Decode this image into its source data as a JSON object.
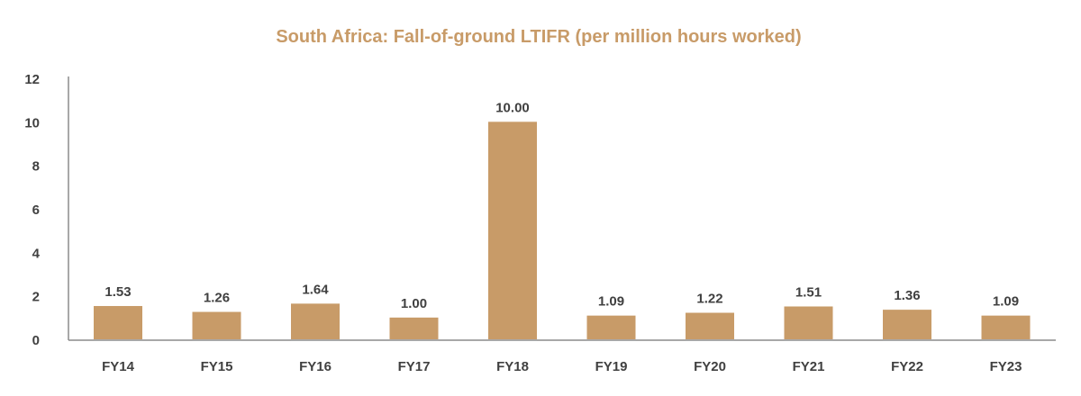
{
  "chart_data": {
    "type": "bar",
    "title": "South Africa: Fall-of-ground LTIFR (per million hours worked)",
    "xlabel": "",
    "ylabel": "",
    "categories": [
      "FY14",
      "FY15",
      "FY16",
      "FY17",
      "FY18",
      "FY19",
      "FY20",
      "FY21",
      "FY22",
      "FY23"
    ],
    "values": [
      1.53,
      1.26,
      1.64,
      1.0,
      10.0,
      1.09,
      1.22,
      1.51,
      1.36,
      1.09
    ],
    "data_labels": [
      "1.53",
      "1.26",
      "1.64",
      "1.00",
      "10.00",
      "1.09",
      "1.22",
      "1.51",
      "1.36",
      "1.09"
    ],
    "ylim": [
      0,
      12
    ],
    "yticks": [
      "0",
      "2",
      "4",
      "6",
      "8",
      "10",
      "12"
    ],
    "grid": false,
    "legend": "none",
    "colors": {
      "bar": "#C89B68",
      "title": "#C89B68",
      "axis": "#8C8C8C",
      "text": "#404040"
    }
  }
}
